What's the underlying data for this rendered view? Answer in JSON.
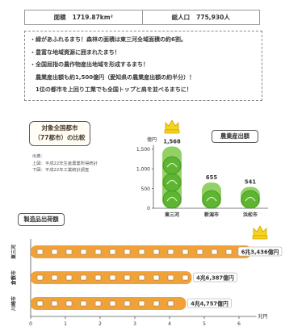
{
  "header": {
    "area_label": "面積",
    "area_value": "1719.87km²",
    "population_label": "総人口",
    "population_value": "775,930人"
  },
  "points": [
    "・緑があふれるまち！森林の面積は東三河全域面積の約6割。",
    "・豊富な地域資源に囲まれたまち！",
    "・全国屈指の農作物産出地域を形成するまち！",
    "　農業産出額も約1,500億円（愛知県の農業産出額の約半分）！",
    "　1位の都市を上回り工業でも全国トップと肩を並べるまちに！"
  ],
  "comparison": {
    "title_line1": "対象全国都市",
    "title_line2": "（77都市）の比較",
    "source": [
      "出典：",
      "上図：平成22年生産農業所得統計",
      "下図：平成22年工業統計調査"
    ]
  },
  "colors": {
    "agri_green": "#5db532",
    "agri_green_light": "#93d066",
    "industry_orange": "#f0a23a",
    "crown_yellow": "#f7d31c"
  },
  "chart_data": [
    {
      "type": "bar",
      "title": "農業産出額",
      "ylabel": "億円",
      "categories": [
        "東三河",
        "新潟市",
        "浜松市"
      ],
      "values": [
        1568,
        655,
        541
      ],
      "value_labels": [
        "1,568",
        "655",
        "541"
      ],
      "yticks": [
        0,
        500,
        1000,
        1500
      ],
      "ytick_labels": [
        "0",
        "500",
        "1,000",
        "1,500"
      ],
      "ylim": [
        0,
        1600
      ]
    },
    {
      "type": "bar",
      "orientation": "horizontal",
      "title": "製造品出荷額",
      "xlabel": "兆円",
      "categories": [
        "東三河",
        "倉敷市",
        "川崎市"
      ],
      "values": [
        6.3436,
        4.6387,
        4.4757
      ],
      "value_labels": [
        "6兆3,436億円",
        "4兆6,387億円",
        "4兆4,757億円"
      ],
      "xticks": [
        0,
        1,
        2,
        3,
        4,
        5,
        6
      ],
      "xtick_labels": [
        "0",
        "1",
        "2",
        "3",
        "4",
        "5",
        "6"
      ],
      "xlim": [
        0,
        6.5
      ]
    }
  ]
}
